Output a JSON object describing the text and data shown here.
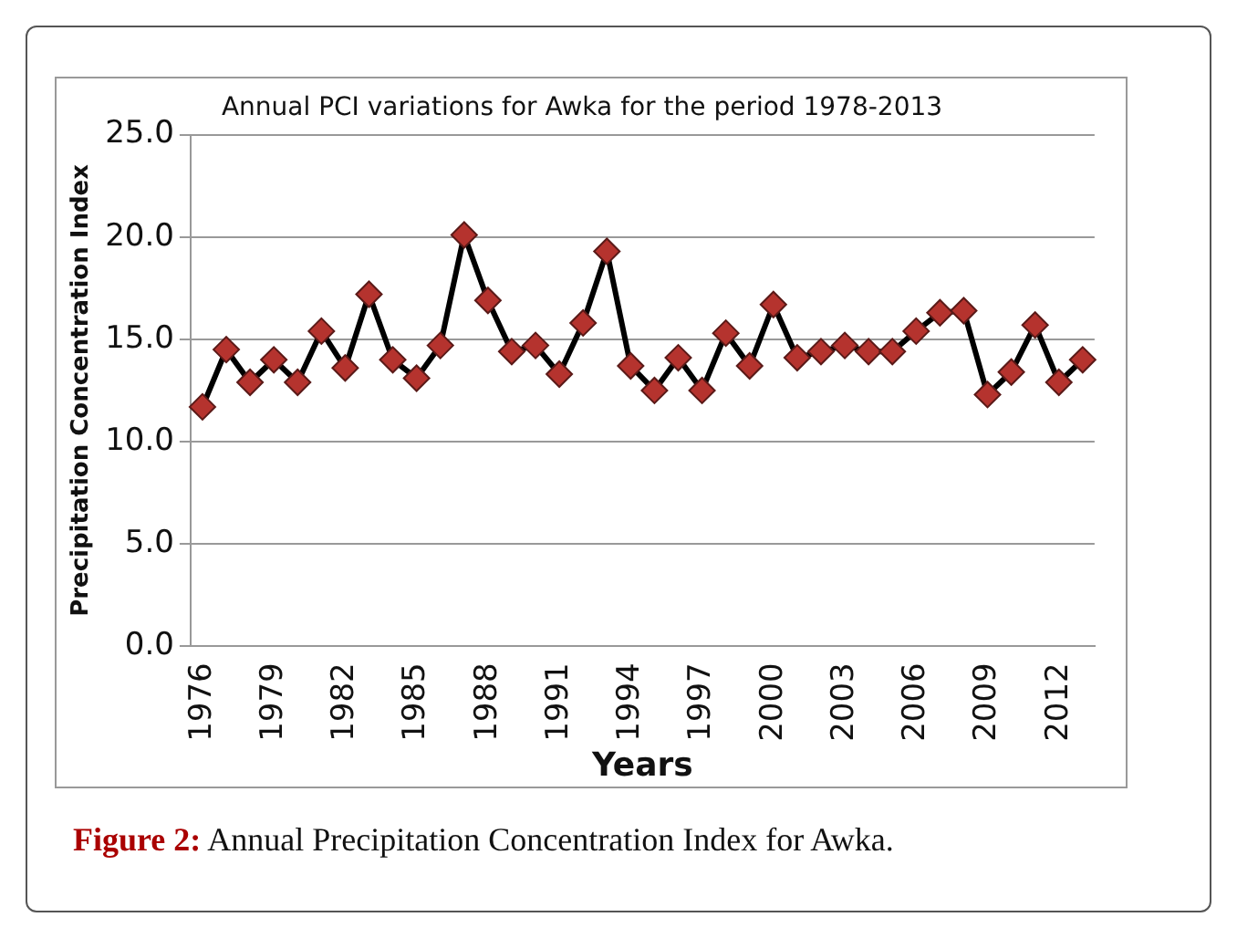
{
  "chart_data": {
    "type": "line",
    "title": "Annual PCI variations for Awka for the period 1978-2013",
    "xlabel": "Years",
    "ylabel": "Precipitation Concentration Index",
    "categories": [
      "1976",
      null,
      null,
      "1979",
      null,
      null,
      "1982",
      null,
      null,
      "1985",
      null,
      null,
      "1988",
      null,
      null,
      "1991",
      null,
      null,
      "1994",
      null,
      null,
      "1997",
      null,
      null,
      "2000",
      null,
      null,
      "2003",
      null,
      null,
      "2006",
      null,
      null,
      "2009",
      null,
      null,
      "2012",
      null
    ],
    "series": [
      {
        "color": "#b5332e",
        "values": [
          11.7,
          14.5,
          12.9,
          14.0,
          12.9,
          15.4,
          13.6,
          17.2,
          14.0,
          13.1,
          14.7,
          20.1,
          16.9,
          14.4,
          14.7,
          13.3,
          15.8,
          19.3,
          13.7,
          12.5,
          14.1,
          12.5,
          15.3,
          13.7,
          16.7,
          14.1,
          14.4,
          14.7,
          14.4,
          14.4,
          15.4,
          16.3,
          16.4,
          12.3,
          13.4,
          15.7,
          12.9,
          14.0
        ]
      }
    ],
    "ylim": [
      0,
      25
    ],
    "yticks": [
      {
        "value": 0,
        "label": "0.0"
      },
      {
        "value": 5,
        "label": "5.0"
      },
      {
        "value": 10,
        "label": "10.0"
      },
      {
        "value": 15,
        "label": "15.0"
      },
      {
        "value": 20,
        "label": "20.0"
      },
      {
        "value": 25,
        "label": "25.0"
      }
    ],
    "grid": "y",
    "legend": false,
    "marker": "diamond",
    "line_style": "solid",
    "annotations": [
      "Figure 2: Annual Precipitation Concentration Index for Awka."
    ]
  }
}
